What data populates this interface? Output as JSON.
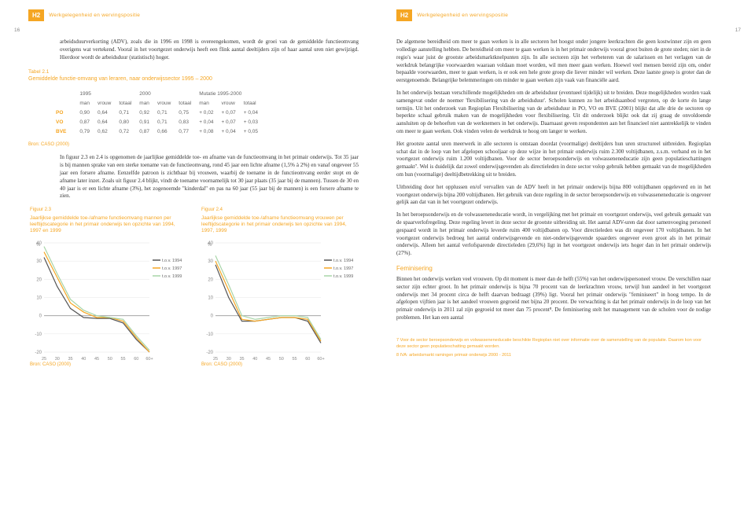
{
  "header": {
    "label": "H2",
    "text": "Werkgelegenheid en wervingspositie",
    "page_left": "16",
    "page_right": "17"
  },
  "left": {
    "para1": "arbeidsduurverkorting (ADV), zoals die in 1996 en 1998 is overeengekomen, wordt de groei van de gemiddelde functieomvang overigens wat vertekend. Vooral in het voortgezet onderwijs heeft een flink aantal deeltijders zijn of haar aantal uren niet gewijzigd. Hierdoor wordt de arbeidsduur (statistisch) hoger.",
    "table_title": "Tabel 2.1",
    "table_subtitle": "Gemiddelde functie-omvang van leraren, naar onderwijssector 1995 – 2000",
    "table": {
      "year_headers": [
        "1995",
        "2000",
        "Mutatie 1995-2000"
      ],
      "col_headers": [
        "man",
        "vrouw",
        "totaal",
        "man",
        "vrouw",
        "totaal",
        "man",
        "vrouw",
        "totaal"
      ],
      "rows": [
        {
          "label": "PO",
          "cells": [
            "0,90",
            "0,64",
            "0,71",
            "0,92",
            "0,71",
            "0,75",
            "+ 0,02",
            "+ 0,07",
            "+ 0,04"
          ]
        },
        {
          "label": "VO",
          "cells": [
            "0,87",
            "0,64",
            "0,80",
            "0,91",
            "0,71",
            "0,83",
            "+ 0,04",
            "+ 0,07",
            "+ 0,03"
          ]
        },
        {
          "label": "BVE",
          "cells": [
            "0,79",
            "0,62",
            "0,72",
            "0,87",
            "0,66",
            "0,77",
            "+ 0,08",
            "+ 0,04",
            "+ 0,05"
          ]
        }
      ]
    },
    "source": "Bron: CASO (2000)",
    "para2": "In figuur 2.3 en 2.4 is opgenomen de jaarlijkse gemiddelde toe- en afname van de functieomvang in het primair onderwijs. Tot 35 jaar is bij mannen sprake van een sterke toename van de functieomvang, rond 45 jaar een lichte afname (1,5% à 2%) en vanaf ongeveer 55 jaar een forsere afname. Eenzelfde patroon is zichtbaar bij vrouwen, waarbij de toename in de functieomvang eerder stopt en de afname later inzet. Zoals uit figuur 2.4 blijkt, vindt de toename voornamelijk tot 30 jaar plaats (35 jaar bij de mannen). Tussen de 30 en 40 jaar is er een lichte afname (3%), het zogenoemde \"kinderdal\" en pas na 60 jaar (55 jaar bij de mannen) is een forsere afname te zien.",
    "fig23": {
      "title": "Figuur 2.3",
      "desc": "Jaarlijkse gemiddelde toe-/afname functieomvang mannen per leeftijdscategorie in het primair onderwijs ten opzichte van 1994, 1997 en 1999"
    },
    "fig24": {
      "title": "Figuur 2.4",
      "desc": "Jaarlijkse gemiddelde toe-/afname functieomvang vrouwen per leeftijdscategorie in het primair onderwijs ten opzichte van 1994, 1997, 1999"
    },
    "chart": {
      "y_label": "%",
      "y_ticks": [
        "40",
        "30",
        "20",
        "10",
        "0",
        "-10",
        "-20"
      ],
      "x_ticks": [
        "25",
        "30",
        "35",
        "40",
        "45",
        "50",
        "55",
        "60",
        "60+"
      ],
      "legend": [
        "t.o.v. 1994",
        "t.o.v. 1997",
        "t.o.v. 1999"
      ],
      "colors": {
        "c1994": "#555555",
        "c1997": "#f5a623",
        "c1999": "#a8d5a8",
        "grid": "#dddddd",
        "axis": "#999999"
      },
      "men": {
        "s1994": [
          32,
          16,
          4,
          -1,
          -1.5,
          -1.5,
          -4,
          -13,
          -20
        ],
        "s1997": [
          35,
          21,
          7,
          2,
          -1,
          -1,
          -3,
          -12,
          -20
        ],
        "s1999": [
          38,
          23,
          9,
          3,
          0,
          -1,
          -2,
          -11,
          -19
        ]
      },
      "women": {
        "s1994": [
          28,
          10,
          -3,
          -3,
          -2,
          -1,
          -1,
          -3,
          -15
        ],
        "s1997": [
          30,
          14,
          -2,
          -3,
          -2,
          -1,
          -1,
          -2,
          -14
        ],
        "s1999": [
          33,
          17,
          0,
          -2,
          -1,
          0,
          0,
          -1,
          -13
        ]
      }
    }
  },
  "right": {
    "para1": "De algemene bereidheid om meer te gaan werken is in alle sectoren het hoogst onder jongere leerkrachten die geen kostwinner zijn en geen volledige aanstelling hebben. De bereidheid om meer te gaan werken is in het primair onderwijs vooral groot buiten de grote steden; niet in de regio's waar juist de grootste arbeidsmarktknelpunten zijn. In alle sectoren zijn het verbeteren van de salarissen en het verlagen van de werkdruk belangrijke voorwaarden waaraan voldaan moet worden, wil men meer gaan werken. Hoewel veel mensen bereid zijn om, onder bepaalde voorwaarden, meer te gaan werken, is er ook een hele grote groep die liever minder wil werken. Deze laatste groep is groter dan de eerstgenoemde. Belangrijke belemmeringen om minder te gaan werken zijn vaak van financiële aard.",
    "para2": "In het onderwijs bestaan verschillende mogelijkheden om de arbeidsduur (eventueel tijdelijk) uit te breiden. Deze mogelijkheden worden vaak samengevat onder de noemer 'flexibilisering van de arbeidsduur'. Scholen kunnen zo het arbeidsaanbod vergroten, op de korte én lange termijn. Uit het onderzoek van Regioplan Flexibilisering van de arbeidsduur in PO, VO en BVE (2001) blijkt dat alle drie de sectoren op beperkte schaal gebruik maken van de mogelijkheden voor flexibilisering. Uit dit onderzoek blijkt ook dat zij graag de onvoldoende aansluiten op de behoeften van de werknemers in het onderwijs. Daarnaast geven respondenten aan het financieel niet aantrekkelijk te vinden om meer te gaan werken. Ook vinden velen de werkdruk te hoog om langer te werken.",
    "para3": "Het grootste aantal uren meerwerk in alle sectoren is ontstaan doordat (voormalige) deeltijders hun uren structureel uitbreiden. Regioplan schat dat in de loop van het afgelopen schooljaar op deze wijze in het primair onderwijs ruim 2.300 voltijdbanen, z.s.m. verband en in het voortgezet onderwijs ruim 1.200 voltijdbanen. Voor de sector beroepsonderwijs en volwasseneneducatie zijn geen populatieschattingen gemaakt⁷. Wel is duidelijk dat zowel onderwijsgevenden als directieleden in deze sector volop gebruik hebben gemaakt van de mogelijkheden om hun (voormalige) deeltijdbetrekking uit te breiden.",
    "para4": "Uitbreiding door het opplussen en/of vervallen van de ADV heeft in het primair onderwijs bijna 800 voltijdbanen opgeleverd en in het voortgezet onderwijs bijna 200 voltijdbanen. Het gebruik van deze regeling in de sector beroepsonderwijs en volwasseneneducatie is ongeveer gelijk aan dat van in het voortgezet onderwijs.",
    "para5": "In het beroepsonderwijs en de volwasseneneducatie wordt, in vergelijking met het primair en voortgezet onderwijs, veel gebruik gemaakt van de spaarverlofregeling. Deze regeling levert in deze sector de grootste uitbreiding uit. Het aantal ADV-uren dat door samenvoeging personeel gespaard wordt in het primair onderwijs leverde ruim 400 voltijdbanen op. Voor directieleden was dit ongeveer 170 voltijdbanen. In het voortgezet onderwijs bedroeg het aantal onderwijsgevende en niet-onderwijsgevende spaarders ongeveer even groot als in het primair onderwijs. Alleen het aantal verlofsparende directieleden (29,6%) ligt in het voortgezet onderwijs iets hoger dan in het primair onderwijs (27%).",
    "section": "Feminisering",
    "para6": "Binnen het onderwijs werken veel vrouwen. Op dit moment is meer dan de helft (55%) van het onderwijspersoneel vrouw. De verschillen naar sector zijn echter groot. In het primair onderwijs is bijna 70 procent van de leerkrachten vrouw, terwijl hun aandeel in het voortgezet onderwijs met 34 procent circa de helft daarvan bedraagt (39%) ligt. Vooral het primair onderwijs \"feminiseert\" in hoog tempo. In de afgelopen vijftien jaar is het aandeel vrouwen gegroeid met bijna 20 procent. De verwachting is dat het primair onderwijs in de loop van het primair onderwijs in 2011 zal zijn gegroeid tot meer dan 75 procent⁸. De feminisering stelt het management van de scholen voor de nodige problemen. Het kan een aantal",
    "footnote7": "7  Voor de sector beroepsonderwijs en volwasseneneducatie beschikte Regioplan niet over informatie over de samenstelling van de populatie. Daarom kon voor deze sector geen populatieschatting gemaakt worden.",
    "footnote8": "8  IVA: arbeidsmarkt ramingen primair onderwijs 2000 - 2011"
  }
}
